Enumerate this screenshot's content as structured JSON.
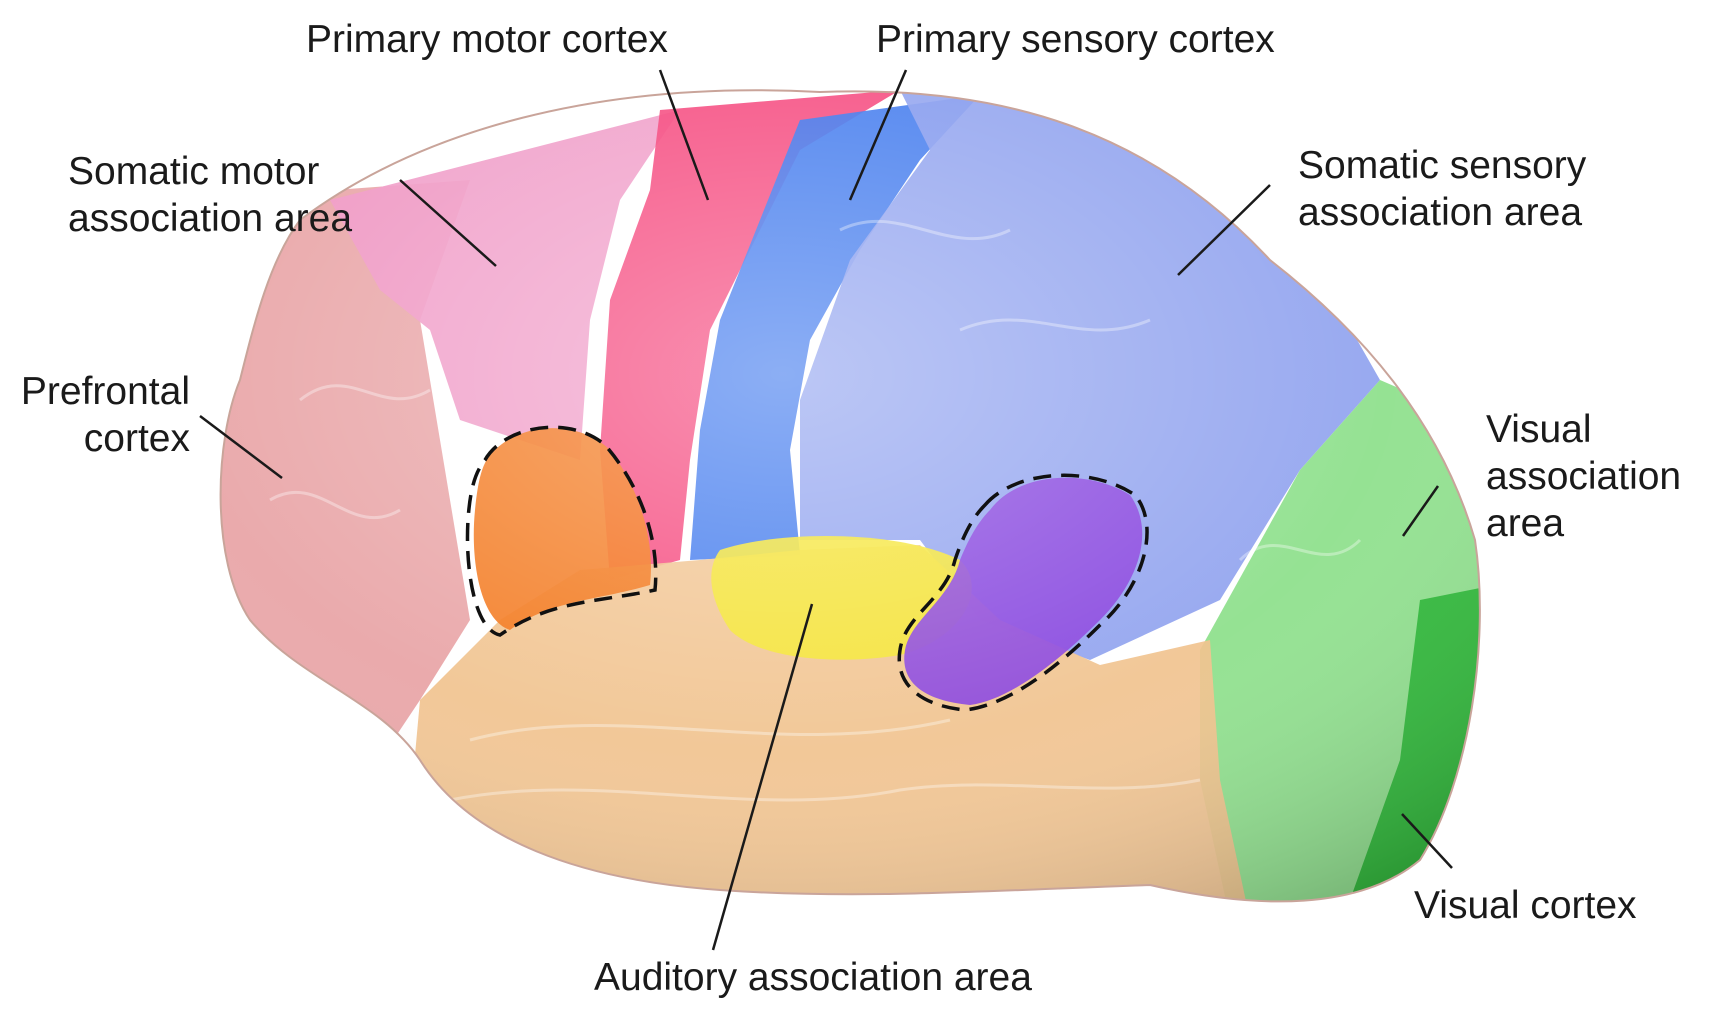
{
  "colors": {
    "prefrontal": "#e8a3a5",
    "somatic_motor": "#f09cc8",
    "primary_motor": "#f5457c",
    "primary_sensory": "#3f78ee",
    "somatic_sensory": "#8fa2ef",
    "visual_association": "#8cdf8a",
    "visual_cortex": "#2fb83a",
    "temporal": "#f1c38f",
    "auditory_primary": "#f5e63a",
    "broca_region": "#f37a1f",
    "wernicke_region": "#8d4ae0",
    "label_text": "#1a1a1a"
  },
  "labels": {
    "primary_motor_cortex": "Primary motor cortex",
    "primary_sensory_cortex": "Primary sensory cortex",
    "somatic_motor_association": [
      "Somatic motor",
      "association area"
    ],
    "somatic_sensory_association": [
      "Somatic sensory",
      "association area"
    ],
    "prefrontal_cortex": [
      "Prefrontal",
      "cortex"
    ],
    "visual_association_area": [
      "Visual",
      "association",
      "area"
    ],
    "visual_cortex": "Visual cortex",
    "auditory_association_area": "Auditory association area"
  }
}
